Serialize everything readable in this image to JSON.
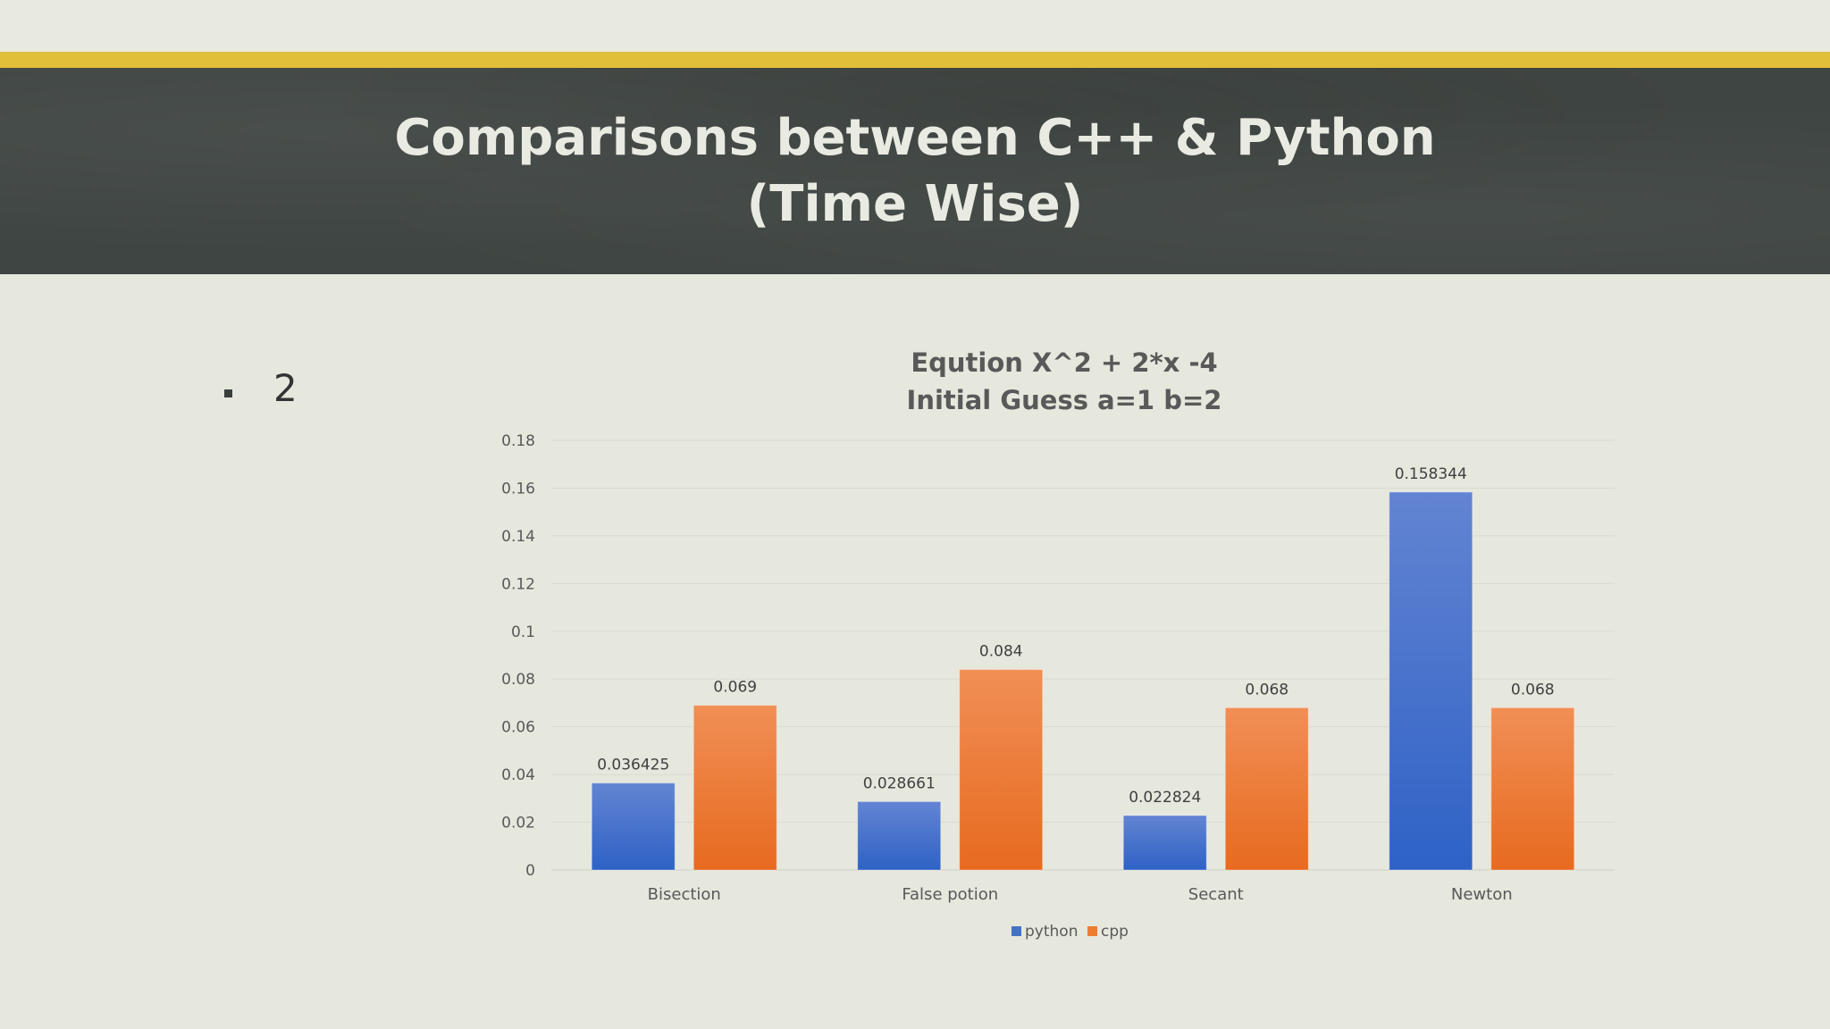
{
  "slide": {
    "title_line1": "Comparisons between C++ & Python",
    "title_line2": "(Time Wise)",
    "bullet_text": "2",
    "accent_color": "#e2bf39",
    "band_color": "#3f4542"
  },
  "chart_data": {
    "type": "bar",
    "title_lines": [
      "Eqution X^2 + 2*x -4",
      "Initial Guess  a=1 b=2"
    ],
    "categories": [
      "Bisection",
      "False potion",
      "Secant",
      "Newton"
    ],
    "series": [
      {
        "name": "python",
        "values": [
          0.036425,
          0.028661,
          0.022824,
          0.158344
        ],
        "color": "#4472c4"
      },
      {
        "name": "cpp",
        "values": [
          0.069,
          0.084,
          0.068,
          0.068
        ],
        "color": "#ed7d31"
      }
    ],
    "data_labels": [
      [
        "0.036425",
        "0.028661",
        "0.022824",
        "0.158344"
      ],
      [
        "0.069",
        "0.084",
        "0.068",
        "0.068"
      ]
    ],
    "yticks": [
      "0",
      "0.02",
      "0.04",
      "0.06",
      "0.08",
      "0.1",
      "0.12",
      "0.14",
      "0.16",
      "0.18"
    ],
    "ylim": [
      0,
      0.18
    ],
    "grid": true,
    "legend_position": "bottom"
  }
}
